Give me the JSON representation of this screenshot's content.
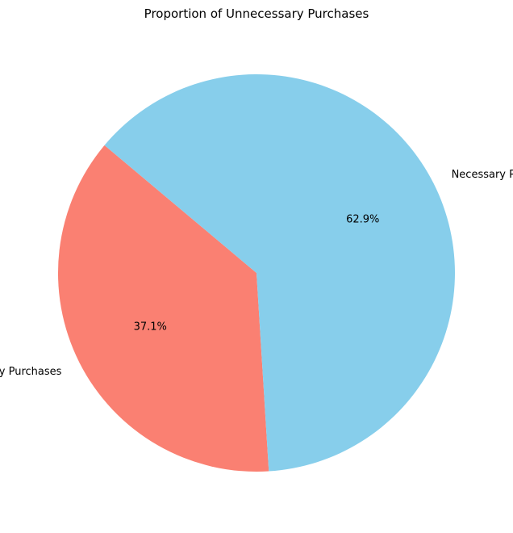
{
  "chart_data": {
    "type": "pie",
    "title": "Proportion of Unnecessary Purchases",
    "slices": [
      {
        "label": "Unnecessary Purchases",
        "value": 37.1,
        "pct_label": "37.1%",
        "color": "#FA8072"
      },
      {
        "label": "Necessary Purchases",
        "value": 62.9,
        "pct_label": "62.9%",
        "color": "#87CEEB"
      }
    ],
    "start_angle_deg": 140,
    "direction": "counterclockwise",
    "legend": "none"
  }
}
